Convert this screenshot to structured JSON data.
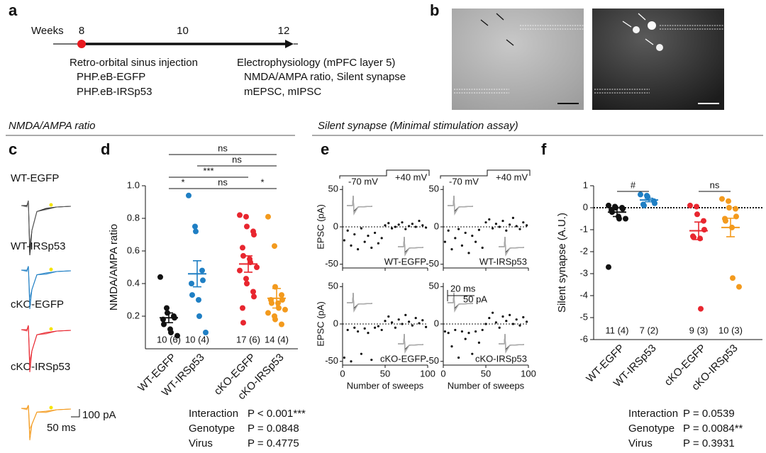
{
  "panel_labels": [
    "a",
    "b",
    "c",
    "d",
    "e",
    "f"
  ],
  "timeline": {
    "axis_label": "Weeks",
    "ticks": [
      8,
      10,
      12
    ],
    "events": [
      {
        "label": "Retro-orbital sinus injection",
        "items": [
          "PHP.eB-EGFP",
          "PHP.eB-IRSp53"
        ]
      },
      {
        "label": "Electrophysiology (mPFC layer 5)",
        "items": [
          "NMDA/AMPA ratio, Silent synapse",
          "mEPSC, mIPSC"
        ]
      }
    ]
  },
  "section_titles": [
    "NMDA/AMPA ratio",
    "Silent synapse (Minimal stimulation assay)"
  ],
  "traces": {
    "labels": [
      "WT-EGFP",
      "WT-IRSp53",
      "cKO-EGFP",
      "cKO-IRSp53"
    ],
    "scale_labels": [
      "100 pA",
      "50 ms"
    ]
  },
  "chart_data": [
    {
      "type": "strip",
      "ylabel": "NMDA/AMPA ratio",
      "categories": [
        "WT-EGFP",
        "WT-IRSp53",
        "cKO-EGFP",
        "cKO-IRSp53"
      ],
      "colors": [
        "#111111",
        "#1f7fc4",
        "#e8262f",
        "#f39a1d"
      ],
      "points": [
        [
          0.44,
          0.25,
          0.22,
          0.2,
          0.19,
          0.18,
          0.15,
          0.12,
          0.1,
          0.08
        ],
        [
          0.94,
          0.75,
          0.72,
          0.48,
          0.42,
          0.4,
          0.33,
          0.3,
          0.2,
          0.1
        ],
        [
          0.82,
          0.81,
          0.75,
          0.72,
          0.7,
          0.62,
          0.57,
          0.55,
          0.53,
          0.5,
          0.48,
          0.43,
          0.4,
          0.35,
          0.32,
          0.25,
          0.16
        ],
        [
          0.81,
          0.63,
          0.38,
          0.33,
          0.3,
          0.3,
          0.28,
          0.28,
          0.25,
          0.24,
          0.22,
          0.2,
          0.18,
          0.15
        ]
      ],
      "means": [
        0.19,
        0.46,
        0.52,
        0.31
      ],
      "sems": [
        0.03,
        0.08,
        0.05,
        0.06
      ],
      "n_labels": [
        "10 (6)",
        "10 (4)",
        "17 (6)",
        "14 (4)"
      ],
      "ylim": [
        0,
        1
      ],
      "yticks": [
        0.2,
        0.4,
        0.6,
        0.8,
        {
          "value": 1,
          "label": "1.0"
        }
      ],
      "comparisons": [
        "ns",
        "ns",
        "***",
        "*",
        "ns",
        "*"
      ],
      "stats": [
        {
          "term": "Interaction",
          "p": "P < 0.001***"
        },
        {
          "term": "Genotype",
          "p": "P = 0.0848"
        },
        {
          "term": "Virus",
          "p": "P = 0.4775"
        }
      ]
    },
    {
      "type": "scatter",
      "label": "WT-EGFP",
      "ylabel": "EPSC (pA)",
      "voltage_labels": [
        "-70 mV",
        "+40 mV"
      ],
      "color": "#111111",
      "x": [
        2,
        6,
        10,
        14,
        18,
        22,
        26,
        30,
        34,
        38,
        42,
        46,
        50,
        54,
        58,
        62,
        66,
        70,
        74,
        78,
        82,
        86,
        90,
        94,
        98
      ],
      "values": [
        -18,
        -5,
        -25,
        -10,
        -30,
        -2,
        -20,
        -12,
        -28,
        -8,
        -22,
        -15,
        2,
        5,
        -2,
        0,
        3,
        6,
        -3,
        1,
        4,
        0,
        8,
        2,
        -1
      ],
      "xlim": [
        0,
        100
      ],
      "xticks": [
        0,
        50,
        100
      ],
      "ylim": [
        -55,
        55
      ],
      "yticks": [
        -50,
        0,
        50
      ]
    },
    {
      "type": "scatter",
      "label": "WT-IRSp53",
      "voltage_labels": [
        "-70 mV",
        "+40 mV"
      ],
      "color": "#111111",
      "x": [
        2,
        6,
        10,
        14,
        18,
        22,
        26,
        30,
        34,
        38,
        42,
        46,
        50,
        54,
        58,
        62,
        66,
        70,
        74,
        78,
        82,
        86,
        90,
        94,
        98
      ],
      "values": [
        -20,
        -5,
        -30,
        -15,
        -3,
        -25,
        -8,
        -35,
        -12,
        -20,
        -4,
        -28,
        6,
        10,
        -2,
        4,
        0,
        8,
        -5,
        3,
        12,
        1,
        -3,
        6,
        2
      ],
      "xlim": [
        0,
        100
      ],
      "xticks": [
        0,
        50,
        100
      ],
      "ylim": [
        -55,
        55
      ],
      "yticks": [
        -50,
        0,
        50
      ]
    },
    {
      "type": "scatter",
      "label": "cKO-EGFP",
      "ylabel": "EPSC (pA)",
      "xlabel": "Number of sweeps",
      "color": "#111111",
      "x": [
        2,
        6,
        10,
        14,
        18,
        22,
        26,
        30,
        34,
        38,
        42,
        46,
        50,
        54,
        58,
        62,
        66,
        70,
        74,
        78,
        82,
        86,
        90,
        94,
        98
      ],
      "values": [
        -45,
        -8,
        -50,
        -5,
        -10,
        -40,
        -6,
        -12,
        -48,
        -5,
        -3,
        -8,
        4,
        10,
        2,
        -5,
        6,
        0,
        12,
        3,
        -2,
        8,
        1,
        5,
        -4
      ],
      "xlim": [
        0,
        100
      ],
      "xticks": [
        0,
        50,
        100
      ],
      "ylim": [
        -55,
        55
      ],
      "yticks": [
        -50,
        0,
        50
      ]
    },
    {
      "type": "scatter",
      "label": "cKO-IRSp53",
      "xlabel": "Number of sweeps",
      "scale_labels": [
        "20 ms",
        "50 pA"
      ],
      "color": "#111111",
      "x": [
        2,
        6,
        10,
        14,
        18,
        22,
        26,
        30,
        34,
        38,
        42,
        46,
        50,
        54,
        58,
        62,
        66,
        70,
        74,
        78,
        82,
        86,
        90,
        94,
        98
      ],
      "values": [
        -10,
        -12,
        -30,
        -8,
        -45,
        -10,
        -20,
        -12,
        -40,
        -10,
        -25,
        -8,
        0,
        8,
        15,
        2,
        -5,
        10,
        4,
        12,
        0,
        6,
        -2,
        9,
        3
      ],
      "xlim": [
        0,
        100
      ],
      "xticks": [
        0,
        50,
        100
      ],
      "ylim": [
        -55,
        55
      ],
      "yticks": [
        -50,
        0,
        50
      ]
    },
    {
      "type": "strip",
      "ylabel": "Silent synapse (A.U.)",
      "categories": [
        "WT-EGFP",
        "WT-IRSp53",
        "cKO-EGFP",
        "cKO-IRSp53"
      ],
      "colors": [
        "#111111",
        "#1f7fc4",
        "#e8262f",
        "#f39a1d"
      ],
      "points": [
        [
          0.1,
          0.05,
          0,
          0,
          -0.05,
          -0.1,
          -0.2,
          -0.4,
          -0.5,
          -0.5,
          -2.7
        ],
        [
          0.6,
          0.55,
          0.5,
          0.3,
          0.2,
          0.15,
          0.1
        ],
        [
          0.1,
          0.05,
          -0.3,
          -0.6,
          -1,
          -1.3,
          -1.35,
          -1.4,
          -4.6
        ],
        [
          0.4,
          0.3,
          0,
          -0.05,
          -0.4,
          -0.5,
          -0.6,
          -0.9,
          -3.2,
          -3.6
        ]
      ],
      "means": [
        -0.2,
        0.35,
        -1.05,
        -0.9
      ],
      "sems": [
        0.2,
        0.08,
        0.4,
        0.42
      ],
      "n_labels": [
        "11 (4)",
        "7 (2)",
        "9 (3)",
        "10 (3)"
      ],
      "ylim": [
        -6,
        1
      ],
      "yticks": [
        -6,
        -5,
        -4,
        -3,
        -2,
        -1,
        0,
        1
      ],
      "comparisons": [
        "#",
        "ns"
      ],
      "stats": [
        {
          "term": "Interaction",
          "p": "P = 0.0539"
        },
        {
          "term": "Genotype",
          "p": "P = 0.0084**"
        },
        {
          "term": "Virus",
          "p": "P = 0.3931"
        }
      ]
    }
  ]
}
